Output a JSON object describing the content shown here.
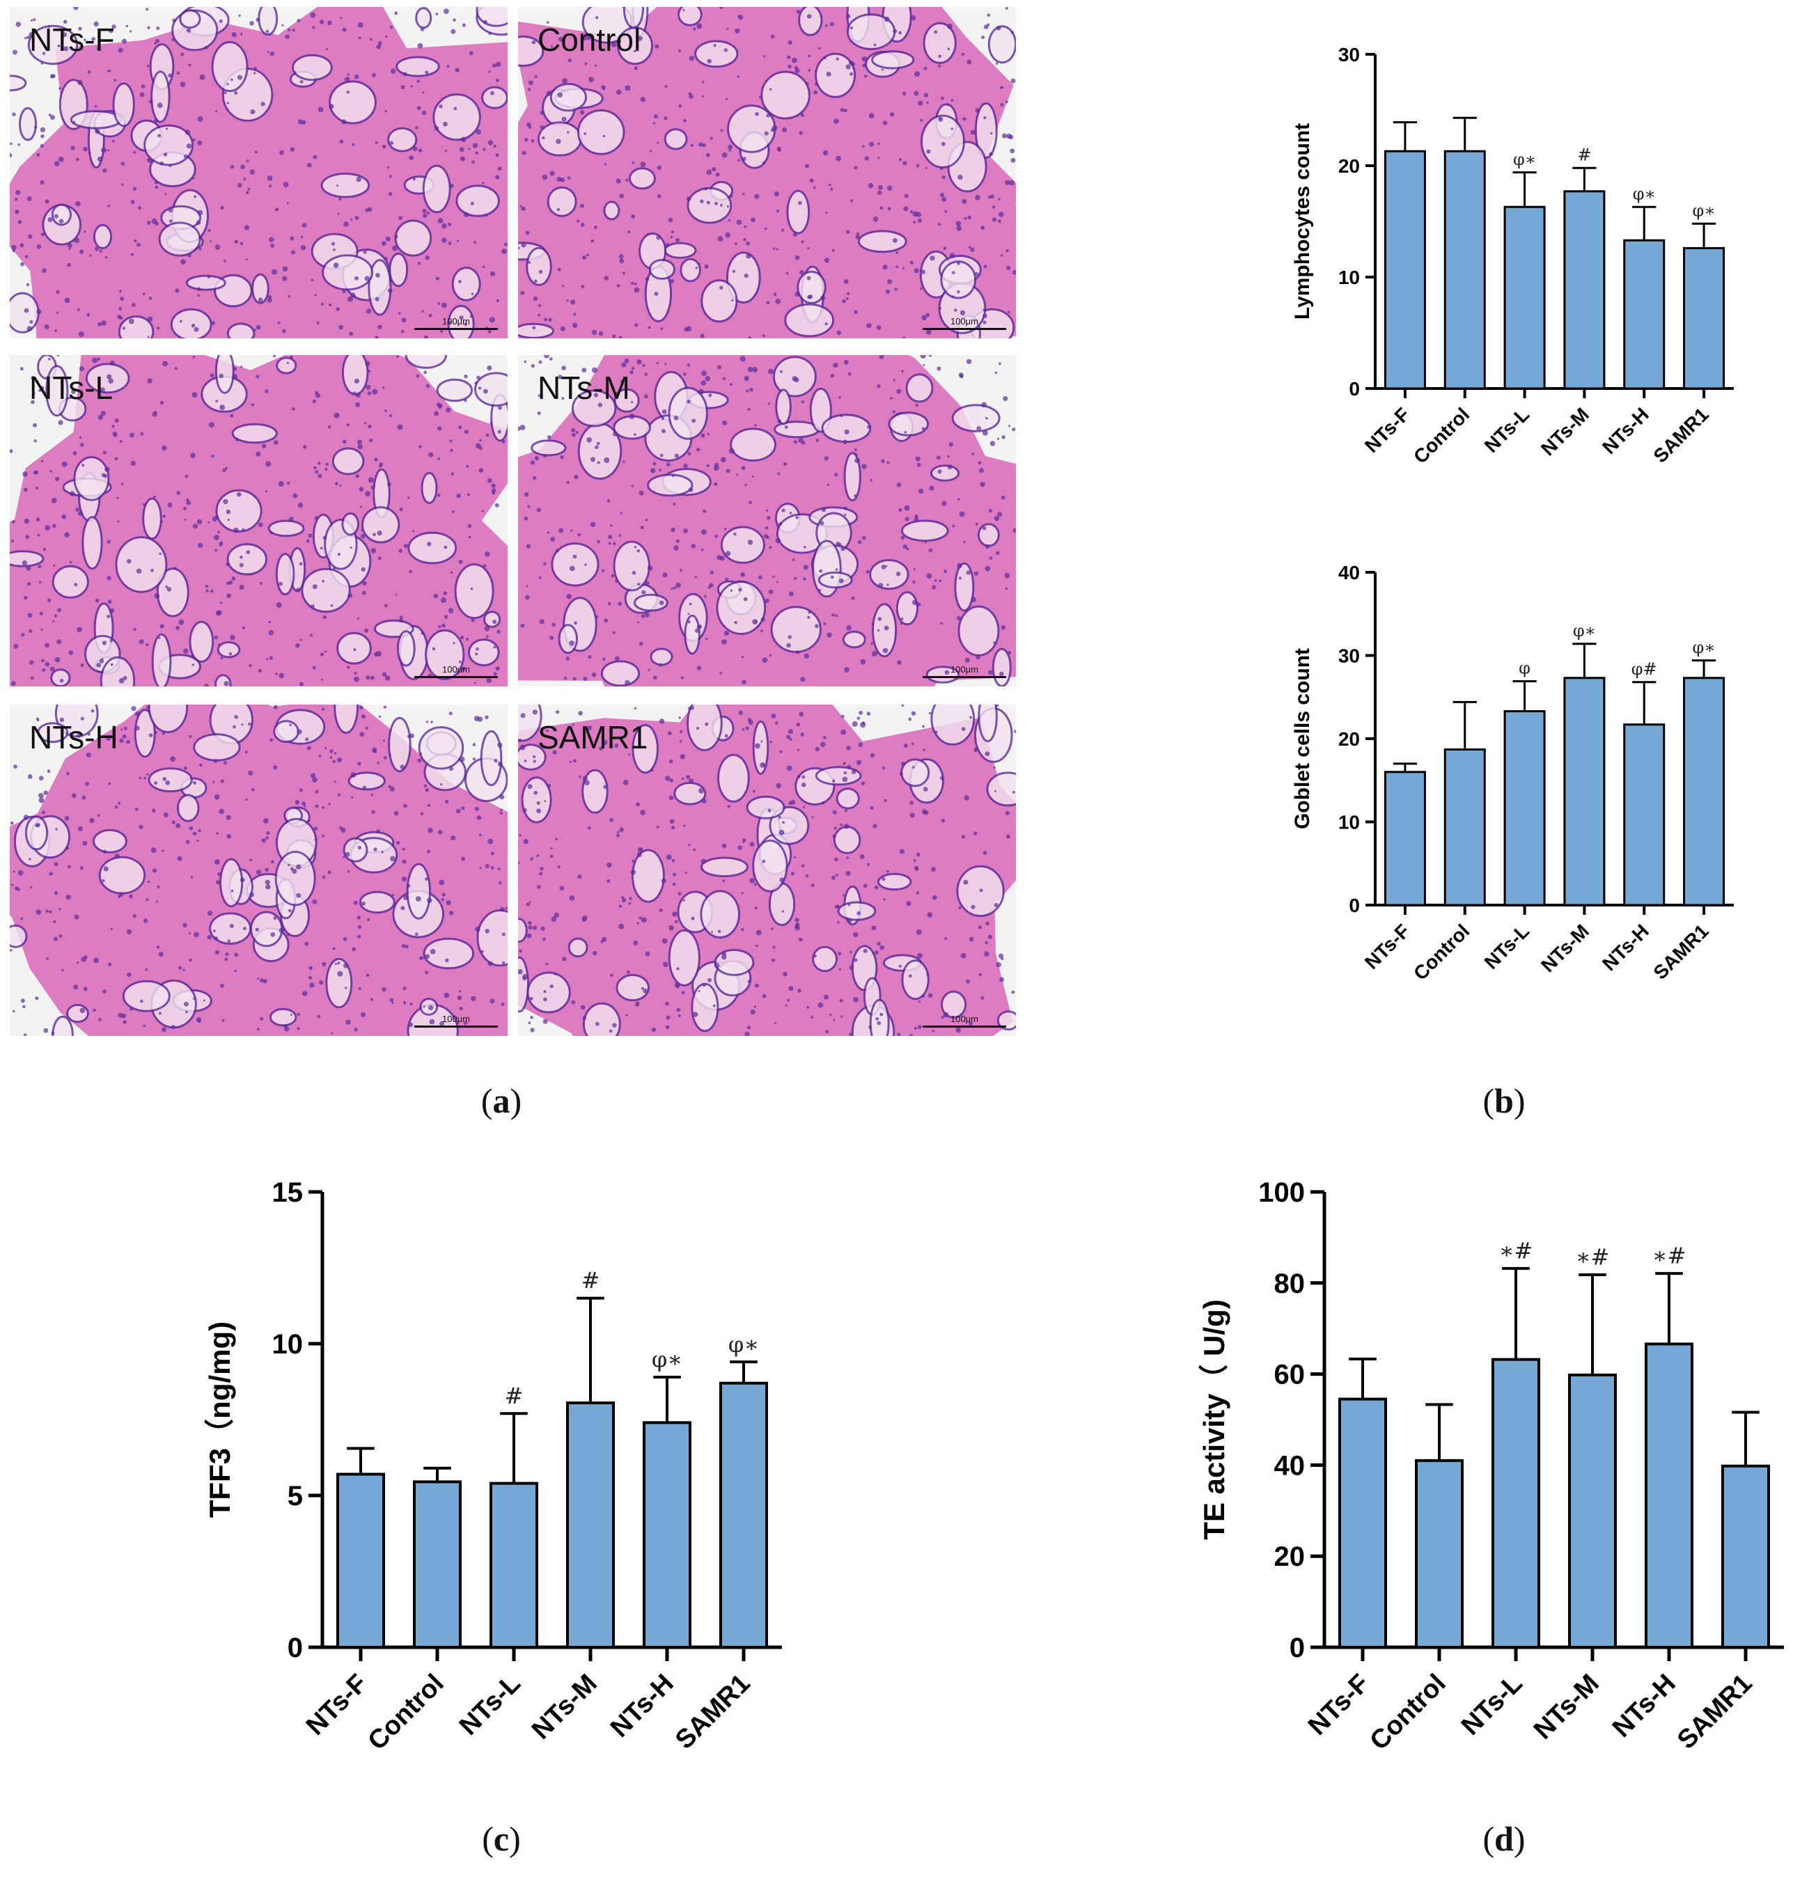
{
  "panel_a": {
    "caption": "a",
    "images": [
      {
        "label": "NTs-F",
        "scale": "100μm"
      },
      {
        "label": "Control",
        "scale": "100μm"
      },
      {
        "label": "NTs-L",
        "scale": "100μm"
      },
      {
        "label": "NTs-M",
        "scale": "100μm"
      },
      {
        "label": "NTs-H",
        "scale": "100μm"
      },
      {
        "label": "SAMR1",
        "scale": "100μm"
      }
    ]
  },
  "captions": {
    "b": "b",
    "c": "c",
    "d": "d"
  },
  "colors": {
    "bar": "#76a8d6",
    "bar_edge": "#000000",
    "tissue_pink": "#d966b8",
    "nuclei": "#5b2c9a",
    "background": "#f3f3f3"
  },
  "chart_data": [
    {
      "id": "lymphocytes",
      "type": "bar",
      "categories": [
        "NTs-F",
        "Control",
        "NTs-L",
        "NTs-M",
        "NTs-H",
        "SAMR1"
      ],
      "values": [
        21.3,
        21.3,
        16.3,
        17.7,
        13.3,
        12.6
      ],
      "errors": [
        2.6,
        3.0,
        3.1,
        2.1,
        3.0,
        2.2
      ],
      "annotations": [
        "",
        "",
        "φ∗",
        "#",
        "φ∗",
        "φ∗"
      ],
      "ylabel": "Lymphocytes count",
      "ylim": [
        0,
        30
      ],
      "yticks": [
        "0",
        "10",
        "20",
        "30"
      ],
      "grid": false
    },
    {
      "id": "goblet",
      "type": "bar",
      "categories": [
        "NTs-F",
        "Control",
        "NTs-L",
        "NTs-M",
        "NTs-H",
        "SAMR1"
      ],
      "values": [
        16.0,
        18.7,
        23.3,
        27.3,
        21.7,
        27.3
      ],
      "errors": [
        1.0,
        5.7,
        3.6,
        4.1,
        5.1,
        2.1
      ],
      "annotations": [
        "",
        "",
        "φ",
        "φ∗",
        "φ#",
        "φ∗"
      ],
      "ylabel": "Goblet cells count",
      "ylim": [
        0,
        40
      ],
      "yticks": [
        "0",
        "10",
        "20",
        "30",
        "40"
      ],
      "grid": false
    },
    {
      "id": "tff3",
      "type": "bar",
      "categories": [
        "NTs-F",
        "Control",
        "NTs-L",
        "NTs-M",
        "NTs-H",
        "SAMR1"
      ],
      "values": [
        5.7,
        5.45,
        5.4,
        8.05,
        7.4,
        8.7
      ],
      "errors": [
        0.85,
        0.45,
        2.3,
        3.45,
        1.5,
        0.7
      ],
      "annotations": [
        "",
        "",
        "#",
        "#",
        "φ∗",
        "φ∗"
      ],
      "ylabel": "TFF3（ng/mg)",
      "ylim": [
        0,
        15
      ],
      "yticks": [
        "0",
        "5",
        "10",
        "15"
      ],
      "grid": false
    },
    {
      "id": "te",
      "type": "bar",
      "categories": [
        "NTs-F",
        "Control",
        "NTs-L",
        "NTs-M",
        "NTs-H",
        "SAMR1"
      ],
      "values": [
        54.5,
        41.0,
        63.2,
        59.8,
        66.6,
        39.8
      ],
      "errors": [
        8.8,
        12.3,
        20.0,
        22.0,
        15.5,
        11.8
      ],
      "annotations": [
        "",
        "",
        "∗#",
        "∗#",
        "∗#",
        ""
      ],
      "ylabel": "TE activity（ U/g)",
      "ylim": [
        0,
        100
      ],
      "yticks": [
        "0",
        "20",
        "40",
        "60",
        "80",
        "100"
      ],
      "grid": false
    }
  ]
}
